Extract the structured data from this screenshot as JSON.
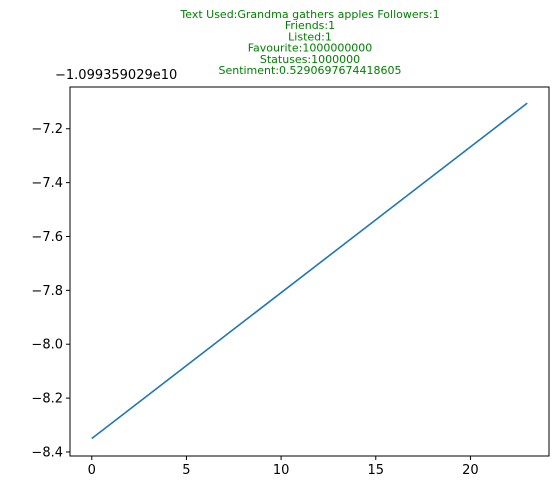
{
  "chart_data": {
    "type": "line",
    "title_lines": [
      "Text Used:Grandma gathers apples Followers:1",
      "Friends:1",
      "Listed:1",
      "Favourite:1000000000",
      "Statuses:1000000",
      "Sentiment:0.5290697674418605"
    ],
    "title_color": "#008000",
    "y_offset_label": "−1.099359029e10",
    "xlabel": "",
    "ylabel": "",
    "xlim": [
      -1.15,
      24.15
    ],
    "ylim": [
      -8.415,
      -7.045
    ],
    "x_ticks": [
      0,
      5,
      10,
      15,
      20
    ],
    "x_tick_labels": [
      "0",
      "5",
      "10",
      "15",
      "20"
    ],
    "y_ticks": [
      -8.4,
      -8.2,
      -8.0,
      -7.8,
      -7.6,
      -7.4,
      -7.2
    ],
    "y_tick_labels": [
      "−8.4",
      "−8.2",
      "−8.0",
      "−7.8",
      "−7.6",
      "−7.4",
      "−7.2"
    ],
    "grid": false,
    "series": [
      {
        "color": "#1f77b4",
        "x": [
          0,
          23
        ],
        "y": [
          -8.35,
          -7.105
        ]
      }
    ]
  }
}
